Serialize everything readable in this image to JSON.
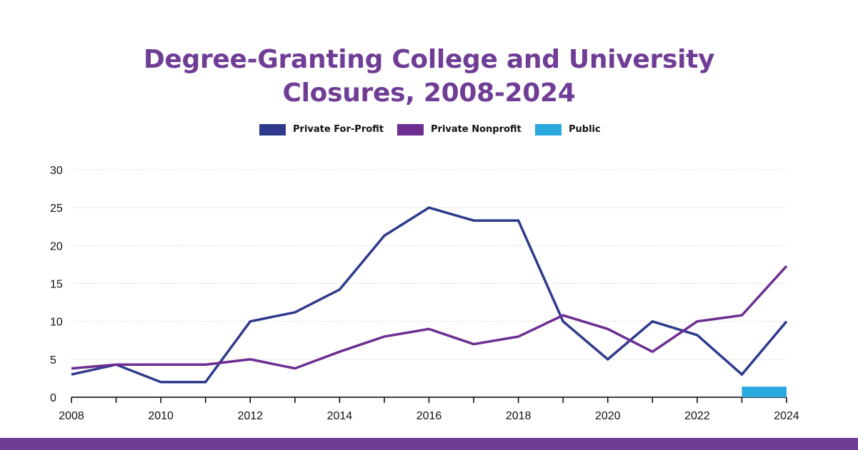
{
  "chart_data": {
    "type": "line",
    "title": "Degree-Granting College and University Closures, 2008-2024",
    "title_lines": [
      "Degree-Granting College and University",
      "Closures, 2008-2024"
    ],
    "x": [
      2008,
      2009,
      2010,
      2011,
      2012,
      2013,
      2014,
      2015,
      2016,
      2017,
      2018,
      2019,
      2020,
      2021,
      2022,
      2023,
      2024
    ],
    "x_tick_labels": [
      "2008",
      "2010",
      "2012",
      "2014",
      "2016",
      "2018",
      "2020",
      "2022",
      "2024"
    ],
    "y_tick_labels": [
      "0",
      "5",
      "10",
      "15",
      "20",
      "25",
      "30"
    ],
    "ylim": [
      0,
      30
    ],
    "grid": true,
    "legend_position": "top-center",
    "series": [
      {
        "name": "Private For-Profit",
        "color": "#2e3a8c",
        "type": "line",
        "values": [
          3,
          4.3,
          2,
          2,
          10,
          11.2,
          14.2,
          21.3,
          25,
          23.3,
          23.3,
          10,
          5,
          10,
          8.2,
          3,
          10
        ]
      },
      {
        "name": "Private Nonprofit",
        "color": "#6c2e91",
        "type": "line",
        "values": [
          3.8,
          4.3,
          4.3,
          4.3,
          5,
          3.8,
          6,
          8,
          9,
          7,
          8,
          10.8,
          9,
          6,
          10,
          10.8,
          17.3
        ]
      },
      {
        "name": "Public",
        "color": "#29a8e0",
        "type": "bar",
        "x_range": [
          2023,
          2024
        ],
        "value": 1.4
      }
    ]
  }
}
